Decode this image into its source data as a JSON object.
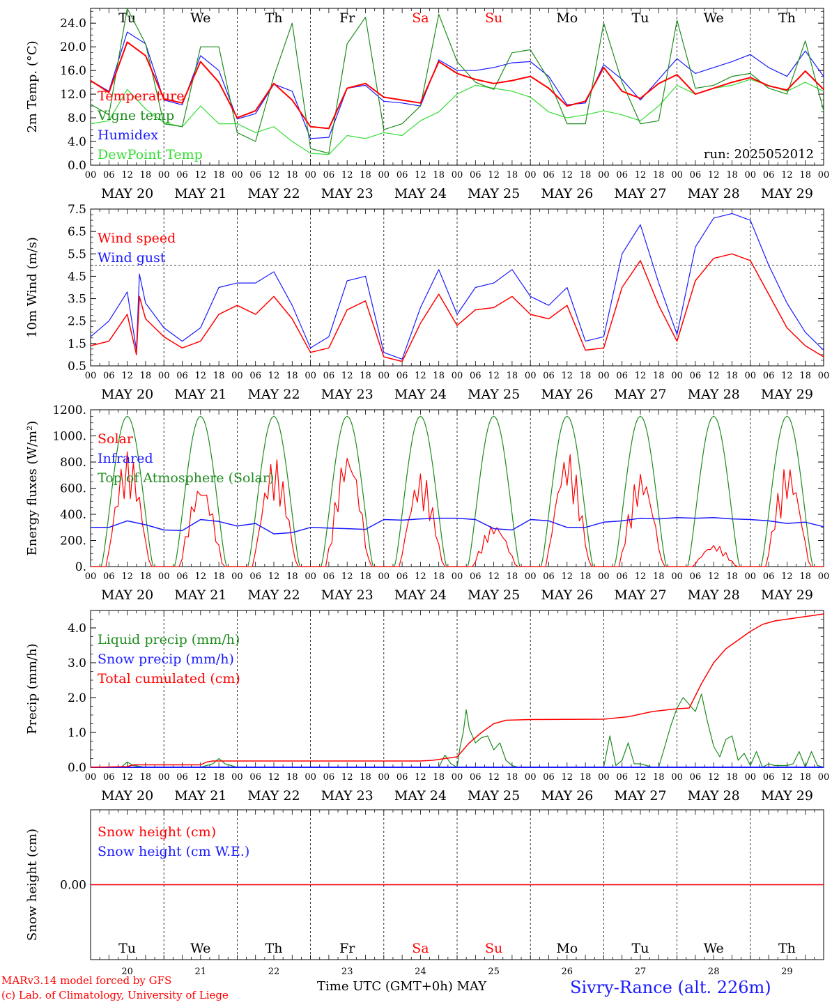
{
  "run_label": "run: 2025052012",
  "days": [
    "Tu",
    "We",
    "Th",
    "Fr",
    "Sa",
    "Su",
    "Mo",
    "Tu",
    "We",
    "Th"
  ],
  "day_colors": [
    "#000000",
    "#000000",
    "#000000",
    "#000000",
    "#ff0000",
    "#ff0000",
    "#000000",
    "#000000",
    "#000000",
    "#000000"
  ],
  "date_labels": [
    "MAY 20",
    "MAY 21",
    "MAY 22",
    "MAY 23",
    "MAY 24",
    "MAY 25",
    "MAY 26",
    "MAY 27",
    "MAY 28",
    "MAY 29"
  ],
  "day_numbers": [
    "20",
    "21",
    "22",
    "23",
    "24",
    "25",
    "26",
    "27",
    "28",
    "29"
  ],
  "hour_ticks": [
    "00",
    "06",
    "12",
    "18"
  ],
  "footer": {
    "model": "MARv3.14 model forced by GFS",
    "lab": "(c) Lab. of Climatology, University of Liege",
    "xlabel": "Time UTC (GMT+0h) MAY",
    "station": "Sivry-Rance (alt. 226m)"
  },
  "colors": {
    "red": "#ff0000",
    "green": "#1e8c1e",
    "blue": "#1a1aff",
    "lightgreen": "#33dd33",
    "black": "#000000"
  },
  "chart_data": [
    {
      "type": "line",
      "ylabel": "2m Temp. (°C)",
      "ylim": [
        0,
        26.5
      ],
      "yticks": [
        "0.0",
        "4.0",
        "8.0",
        "12.0",
        "16.0",
        "20.0",
        "24.0"
      ],
      "ytick_values": [
        0,
        4,
        8,
        12,
        16,
        20,
        24
      ],
      "x_hours": [
        0,
        6,
        12,
        18,
        24,
        30,
        36,
        42,
        48,
        54,
        60,
        66,
        72,
        78,
        84,
        90,
        96,
        102,
        108,
        114,
        120,
        126,
        132,
        138,
        144,
        150,
        156,
        162,
        168,
        174,
        180,
        186,
        192,
        198,
        204,
        210,
        216,
        222,
        228,
        234,
        240
      ],
      "series": [
        {
          "name": "Temperature",
          "color": "red",
          "width": 2,
          "values": [
            14.3,
            12.3,
            20.8,
            18.5,
            11.2,
            10.5,
            17.5,
            14.0,
            8.0,
            9.2,
            13.8,
            11.0,
            6.5,
            6.2,
            13.0,
            13.8,
            11.5,
            11.0,
            10.5,
            17.5,
            15.5,
            14.5,
            13.8,
            14.3,
            15.0,
            13.0,
            10.0,
            10.8,
            16.5,
            12.5,
            11.3,
            13.8,
            15.3,
            12.0,
            13.0,
            14.0,
            14.8,
            13.4,
            12.7,
            15.9,
            12.8
          ]
        },
        {
          "name": "Vigne temp",
          "color": "green",
          "width": 1.2,
          "values": [
            10.3,
            8.5,
            26.5,
            20.5,
            7.0,
            6.5,
            20.0,
            20.0,
            5.5,
            4.0,
            15.0,
            24.0,
            2.8,
            2.0,
            20.5,
            25.0,
            6.0,
            7.0,
            10.0,
            25.5,
            17.5,
            14.0,
            12.8,
            19.0,
            19.5,
            14.5,
            7.0,
            7.0,
            24.0,
            14.0,
            7.0,
            7.5,
            24.5,
            13.0,
            13.5,
            15.0,
            15.5,
            13.0,
            12.0,
            21.0,
            9.2
          ]
        },
        {
          "name": "Humidex",
          "color": "blue",
          "width": 1.2,
          "values": [
            14.3,
            12.5,
            22.5,
            20.5,
            11.0,
            10.2,
            18.5,
            16.0,
            7.8,
            8.7,
            13.7,
            12.5,
            4.5,
            4.7,
            13.0,
            13.5,
            10.8,
            10.5,
            10.0,
            17.8,
            16.0,
            16.0,
            16.5,
            17.3,
            17.5,
            15.0,
            10.2,
            10.5,
            17.0,
            14.5,
            11.0,
            14.5,
            18.0,
            15.5,
            16.5,
            17.5,
            18.7,
            16.5,
            15.0,
            19.3,
            15.0
          ]
        },
        {
          "name": "DewPoint Temp",
          "color": "lightgreen",
          "width": 1.2,
          "values": [
            7.0,
            7.5,
            12.8,
            9.5,
            7.2,
            6.5,
            10.0,
            7.0,
            7.0,
            5.5,
            6.5,
            4.0,
            2.0,
            1.8,
            5.0,
            4.5,
            5.5,
            5.0,
            7.5,
            9.0,
            12.0,
            13.5,
            13.0,
            12.5,
            11.5,
            9.0,
            8.0,
            8.5,
            9.2,
            8.5,
            7.5,
            10.0,
            13.5,
            12.0,
            13.0,
            13.5,
            14.5,
            13.5,
            12.5,
            14.0,
            12.5
          ]
        }
      ]
    },
    {
      "type": "line",
      "ylabel": "10m Wind (m/s)",
      "ylim": [
        0.5,
        7.5
      ],
      "yticks": [
        "0.5",
        "1.5",
        "2.5",
        "3.5",
        "4.5",
        "5.5",
        "6.5",
        "7.5"
      ],
      "ytick_values": [
        0.5,
        1.5,
        2.5,
        3.5,
        4.5,
        5.5,
        6.5,
        7.5
      ],
      "reference_line": 5.0,
      "x_hours": [
        0,
        6,
        12,
        15,
        16,
        18,
        24,
        30,
        36,
        42,
        48,
        54,
        60,
        66,
        72,
        78,
        84,
        90,
        96,
        102,
        108,
        114,
        120,
        126,
        132,
        138,
        144,
        150,
        156,
        162,
        168,
        174,
        180,
        186,
        192,
        198,
        204,
        210,
        216,
        222,
        228,
        234,
        240
      ],
      "series": [
        {
          "name": "Wind speed",
          "color": "red",
          "width": 1.5,
          "values": [
            1.4,
            1.6,
            2.8,
            1.0,
            3.6,
            2.6,
            1.8,
            1.3,
            1.6,
            2.8,
            3.2,
            2.8,
            3.6,
            2.6,
            1.1,
            1.3,
            3.0,
            3.4,
            0.9,
            0.7,
            2.4,
            3.7,
            2.3,
            3.0,
            3.1,
            3.6,
            2.8,
            2.6,
            3.2,
            1.2,
            1.3,
            4.0,
            5.2,
            3.2,
            1.6,
            4.3,
            5.3,
            5.5,
            5.2,
            3.7,
            2.2,
            1.4,
            0.9
          ]
        },
        {
          "name": "Wind gust",
          "color": "blue",
          "width": 1.2,
          "values": [
            1.8,
            2.5,
            3.8,
            1.2,
            4.6,
            3.3,
            2.2,
            1.6,
            2.2,
            4.0,
            4.2,
            4.2,
            4.7,
            3.2,
            1.3,
            1.8,
            4.3,
            4.5,
            1.1,
            0.8,
            3.1,
            4.8,
            2.8,
            4.0,
            4.2,
            4.8,
            3.6,
            3.2,
            4.0,
            1.6,
            1.8,
            5.5,
            6.8,
            4.2,
            1.9,
            5.8,
            7.1,
            7.3,
            7.0,
            5.0,
            3.3,
            2.0,
            1.2
          ]
        }
      ]
    },
    {
      "type": "line",
      "ylabel": "Energy fluxes (W/m²)",
      "ylim": [
        0,
        1200
      ],
      "yticks": [
        "0.",
        "200.",
        "400.",
        "600.",
        "800.",
        "1000.",
        "1200."
      ],
      "ytick_values": [
        0,
        200,
        400,
        600,
        800,
        1000,
        1200
      ],
      "series": [
        {
          "name": "Solar",
          "color": "red",
          "width": 1.2,
          "day_peaks": [
            880,
            650,
            830,
            900,
            720,
            330,
            880,
            730,
            170,
            780
          ]
        },
        {
          "name": "Infrared",
          "color": "blue",
          "width": 1.5,
          "values": [
            300,
            300,
            350,
            320,
            280,
            275,
            360,
            345,
            310,
            330,
            250,
            260,
            300,
            295,
            290,
            285,
            360,
            355,
            365,
            370,
            370,
            360,
            290,
            280,
            360,
            350,
            300,
            300,
            340,
            350,
            370,
            365,
            375,
            370,
            375,
            365,
            360,
            350,
            330,
            340,
            305
          ]
        },
        {
          "name": "Top of Atmosphere (Solar)",
          "color": "green",
          "width": 1.2,
          "day_peak": 1150
        }
      ]
    },
    {
      "type": "line",
      "ylabel": "Precip (mm/h)",
      "ylim": [
        0,
        4.5
      ],
      "yticks": [
        "0.0",
        "1.0",
        "2.0",
        "3.0",
        "4.0"
      ],
      "ytick_values": [
        0,
        1,
        2,
        3,
        4
      ],
      "series": [
        {
          "name": "Liquid precip (mm/h)",
          "color": "green",
          "width": 1.2,
          "x_hours": [
            0,
            10,
            12,
            14,
            18,
            24,
            36,
            40,
            42,
            44,
            48,
            120,
            114,
            116,
            118,
            120,
            121,
            122,
            123,
            124,
            126,
            128,
            130,
            132,
            134,
            136,
            138,
            140,
            142,
            144,
            168,
            170,
            172,
            174,
            176,
            178,
            180,
            182,
            184,
            186,
            188,
            190,
            192,
            194,
            196,
            198,
            200,
            202,
            204,
            206,
            208,
            210,
            212,
            214,
            216,
            218,
            220,
            222,
            224,
            226,
            228,
            230,
            232,
            234,
            236,
            238,
            240
          ],
          "values": [
            0,
            0,
            0.15,
            0.05,
            0,
            0,
            0,
            0.1,
            0.25,
            0.1,
            0,
            0,
            0,
            0.35,
            0.1,
            0,
            0.6,
            1.0,
            1.65,
            1.1,
            0.7,
            0.85,
            0.9,
            0.5,
            0.7,
            0.2,
            0.05,
            0,
            0,
            0,
            0,
            0.9,
            0.05,
            0.2,
            0.7,
            0.1,
            0.1,
            0.05,
            0,
            0,
            0.6,
            1.2,
            1.7,
            2.0,
            1.8,
            1.6,
            2.1,
            1.3,
            0.6,
            0.3,
            0.8,
            0.9,
            0.2,
            0.4,
            0.05,
            0.45,
            0,
            0.1,
            0.05,
            0.05,
            0.05,
            0.1,
            0.45,
            0,
            0.45,
            0.05,
            0
          ]
        },
        {
          "name": "Snow precip (mm/h)",
          "color": "blue",
          "width": 1.2,
          "values": [
            0,
            0
          ]
        },
        {
          "name": "Total cumulated (cm)",
          "color": "red",
          "width": 1.5,
          "x_hours": [
            0,
            12,
            14,
            36,
            38,
            40,
            42,
            108,
            112,
            116,
            120,
            124,
            128,
            132,
            136,
            144,
            168,
            176,
            184,
            192,
            196,
            200,
            204,
            208,
            212,
            216,
            220,
            224,
            228,
            232,
            240
          ],
          "values": [
            0,
            0.02,
            0.07,
            0.07,
            0.15,
            0.18,
            0.18,
            0.18,
            0.2,
            0.25,
            0.3,
            0.7,
            1.0,
            1.25,
            1.35,
            1.37,
            1.38,
            1.45,
            1.6,
            1.68,
            1.7,
            2.4,
            3.0,
            3.4,
            3.65,
            3.9,
            4.1,
            4.2,
            4.25,
            4.3,
            4.4
          ]
        }
      ]
    },
    {
      "type": "line",
      "ylabel": "Snow height (cm)",
      "ylim": [
        -1,
        1
      ],
      "yticks": [
        "0.00"
      ],
      "ytick_values": [
        0
      ],
      "series": [
        {
          "name": "Snow height (cm)",
          "color": "red",
          "width": 1.5,
          "values": [
            0,
            0
          ]
        },
        {
          "name": "Snow height (cm W.E.)",
          "color": "blue",
          "width": 1.2,
          "values": [
            0,
            0
          ]
        }
      ]
    }
  ]
}
